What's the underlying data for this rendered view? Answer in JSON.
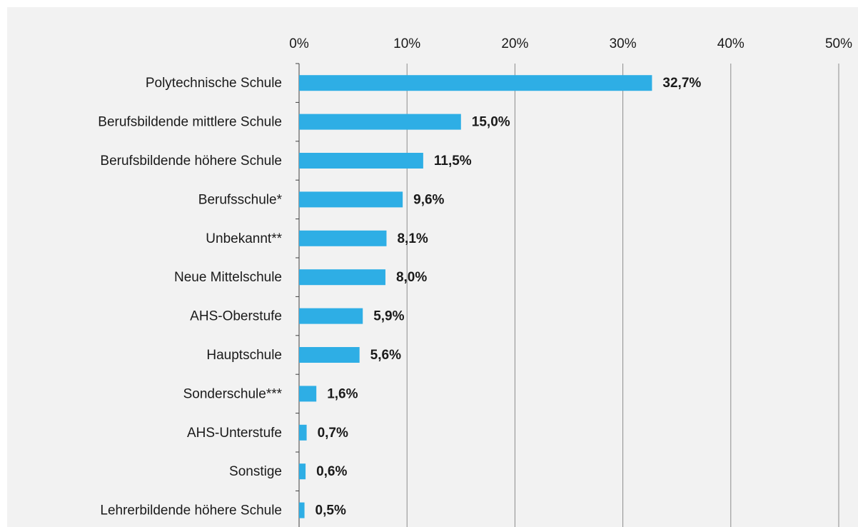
{
  "chart_data": {
    "type": "bar",
    "orientation": "horizontal",
    "categories": [
      "Polytechnische Schule",
      "Berufsbildende mittlere Schule",
      "Berufsbildende höhere Schule",
      "Berufsschule*",
      "Unbekannt**",
      "Neue Mittelschule",
      "AHS-Oberstufe",
      "Hauptschule",
      "Sonderschule***",
      "AHS-Unterstufe",
      "Sonstige",
      "Lehrerbildende höhere Schule"
    ],
    "values": [
      32.7,
      15.0,
      11.5,
      9.6,
      8.1,
      8.0,
      5.9,
      5.6,
      1.6,
      0.7,
      0.6,
      0.5
    ],
    "value_labels": [
      "32,7%",
      "15,0%",
      "11,5%",
      "9,6%",
      "8,1%",
      "8,0%",
      "5,9%",
      "5,6%",
      "1,6%",
      "0,7%",
      "0,6%",
      "0,5%"
    ],
    "color": "#2eaee5",
    "xlim": [
      0,
      50
    ],
    "xticks": [
      {
        "value": 0,
        "label": "0%"
      },
      {
        "value": 10,
        "label": "10%"
      },
      {
        "value": 20,
        "label": "20%"
      },
      {
        "value": 30,
        "label": "30%"
      },
      {
        "value": 40,
        "label": "40%"
      },
      {
        "value": 50,
        "label": "50%"
      }
    ],
    "grid": true
  }
}
